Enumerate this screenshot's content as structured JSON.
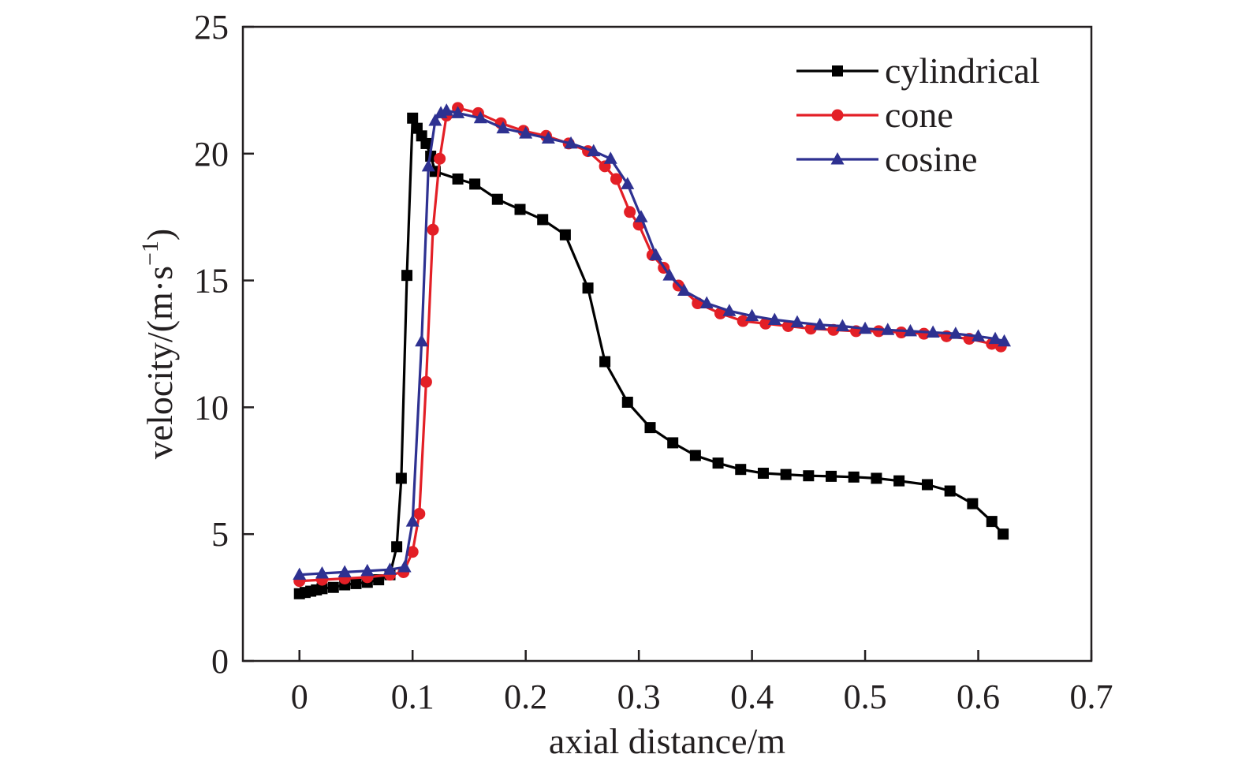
{
  "chart_data": {
    "type": "line",
    "title": "",
    "xlabel": "axial distance/m",
    "ylabel_main": "velocity/(m·s",
    "ylabel_sup": "−1",
    "ylabel_close": ")",
    "xlim": [
      -0.05,
      0.7
    ],
    "ylim": [
      0,
      25
    ],
    "xticks": [
      0,
      0.1,
      0.2,
      0.3,
      0.4,
      0.5,
      0.6,
      0.7
    ],
    "xtick_labels": [
      "0",
      "0.1",
      "0.2",
      "0.3",
      "0.4",
      "0.5",
      "0.6",
      "0.7"
    ],
    "yticks": [
      0,
      5,
      10,
      15,
      20,
      25
    ],
    "ytick_labels": [
      "0",
      "5",
      "10",
      "15",
      "20",
      "25"
    ],
    "grid": false,
    "legend_position": "top-right",
    "series": [
      {
        "name": "cylindrical",
        "color": "#000000",
        "marker": "square",
        "x": [
          0.0,
          0.005,
          0.01,
          0.015,
          0.02,
          0.03,
          0.04,
          0.05,
          0.06,
          0.07,
          0.08,
          0.086,
          0.09,
          0.095,
          0.1,
          0.104,
          0.108,
          0.112,
          0.116,
          0.12,
          0.14,
          0.155,
          0.175,
          0.195,
          0.215,
          0.235,
          0.255,
          0.27,
          0.29,
          0.31,
          0.33,
          0.35,
          0.37,
          0.39,
          0.41,
          0.43,
          0.45,
          0.47,
          0.49,
          0.51,
          0.53,
          0.555,
          0.575,
          0.595,
          0.612,
          0.622
        ],
        "y": [
          2.65,
          2.7,
          2.75,
          2.8,
          2.85,
          2.9,
          3.0,
          3.05,
          3.1,
          3.2,
          3.4,
          4.5,
          7.2,
          15.2,
          21.4,
          21.0,
          20.7,
          20.4,
          19.9,
          19.3,
          19.0,
          18.8,
          18.2,
          17.8,
          17.4,
          16.8,
          14.7,
          11.8,
          10.2,
          9.2,
          8.6,
          8.1,
          7.8,
          7.55,
          7.4,
          7.35,
          7.3,
          7.28,
          7.25,
          7.2,
          7.1,
          6.95,
          6.7,
          6.2,
          5.5,
          5.0
        ]
      },
      {
        "name": "cone",
        "color": "#e31f26",
        "marker": "circle",
        "x": [
          0.0,
          0.02,
          0.04,
          0.06,
          0.08,
          0.092,
          0.1,
          0.106,
          0.112,
          0.118,
          0.124,
          0.13,
          0.14,
          0.158,
          0.178,
          0.198,
          0.218,
          0.238,
          0.255,
          0.27,
          0.28,
          0.292,
          0.3,
          0.312,
          0.322,
          0.335,
          0.352,
          0.372,
          0.392,
          0.412,
          0.432,
          0.452,
          0.472,
          0.492,
          0.512,
          0.532,
          0.552,
          0.572,
          0.592,
          0.612,
          0.62
        ],
        "y": [
          3.15,
          3.2,
          3.25,
          3.3,
          3.4,
          3.5,
          4.3,
          5.8,
          11.0,
          17.0,
          19.8,
          21.5,
          21.8,
          21.6,
          21.2,
          20.9,
          20.7,
          20.4,
          20.1,
          19.5,
          19.0,
          17.7,
          17.2,
          16.0,
          15.5,
          14.8,
          14.1,
          13.7,
          13.4,
          13.3,
          13.2,
          13.1,
          13.05,
          13.0,
          13.0,
          12.95,
          12.9,
          12.8,
          12.7,
          12.5,
          12.4
        ]
      },
      {
        "name": "cosine",
        "color": "#2e3191",
        "marker": "triangle",
        "x": [
          0.0,
          0.02,
          0.04,
          0.06,
          0.08,
          0.093,
          0.1,
          0.108,
          0.114,
          0.12,
          0.125,
          0.13,
          0.14,
          0.16,
          0.18,
          0.2,
          0.22,
          0.24,
          0.26,
          0.275,
          0.29,
          0.302,
          0.315,
          0.327,
          0.34,
          0.36,
          0.38,
          0.4,
          0.42,
          0.44,
          0.46,
          0.48,
          0.5,
          0.52,
          0.54,
          0.56,
          0.58,
          0.6,
          0.615,
          0.623
        ],
        "y": [
          3.4,
          3.45,
          3.5,
          3.55,
          3.6,
          3.7,
          5.5,
          12.6,
          19.5,
          21.3,
          21.6,
          21.7,
          21.6,
          21.4,
          21.0,
          20.8,
          20.6,
          20.4,
          20.1,
          19.8,
          18.8,
          17.5,
          16.0,
          15.2,
          14.6,
          14.1,
          13.8,
          13.6,
          13.45,
          13.35,
          13.25,
          13.2,
          13.1,
          13.05,
          13.0,
          12.95,
          12.9,
          12.8,
          12.7,
          12.6
        ]
      }
    ]
  }
}
